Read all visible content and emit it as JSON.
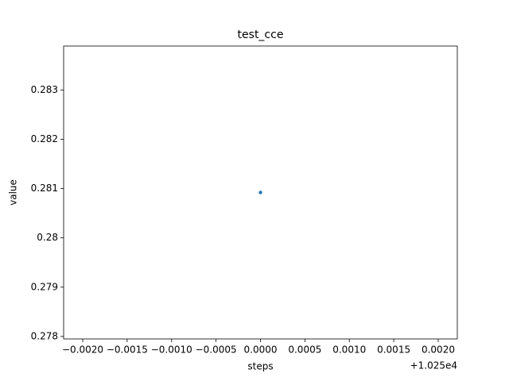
{
  "chart_data": {
    "type": "scatter",
    "title": "test_cce",
    "x_label": "steps",
    "y_label": "value",
    "x_offset_label": "+1.025e4",
    "series": [
      {
        "color": "#1f77b4",
        "x": [
          10250
        ],
        "values": [
          0.28092
        ]
      }
    ],
    "xlim": [
      10249.997785,
      10250.002215
    ],
    "xticks": [
      {
        "value": 10249.998,
        "label": "−0.0020"
      },
      {
        "value": 10249.9985,
        "label": "−0.0015"
      },
      {
        "value": 10249.999,
        "label": "−0.0010"
      },
      {
        "value": 10249.9995,
        "label": "−0.0005"
      },
      {
        "value": 10250,
        "label": "0.0000"
      },
      {
        "value": 10250.0005,
        "label": "0.0005"
      },
      {
        "value": 10250.001,
        "label": "0.0010"
      },
      {
        "value": 10250.0015,
        "label": "0.0015"
      },
      {
        "value": 10250.002,
        "label": "0.0020"
      }
    ],
    "ylim": [
      0.27795,
      0.28389
    ],
    "yticks": [
      0.278,
      0.279,
      0.28,
      0.281,
      0.282,
      0.283
    ],
    "grid": false
  }
}
